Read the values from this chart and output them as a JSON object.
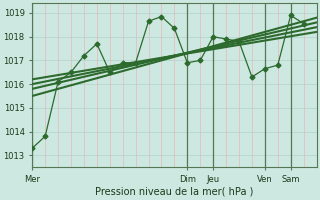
{
  "background_color": "#cce8e0",
  "grid_color_h": "#b8d8d0",
  "grid_color_v": "#e8b8b8",
  "line_color": "#2d6a2d",
  "xlabel": "Pression niveau de la mer( hPa )",
  "ylim_min": 1012.5,
  "ylim_max": 1019.4,
  "yticks": [
    1013,
    1014,
    1015,
    1016,
    1017,
    1018,
    1019
  ],
  "xlim_min": 0,
  "xlim_max": 132,
  "xtick_positions": [
    0,
    72,
    84,
    108,
    120
  ],
  "xtick_labels": [
    "Mer",
    "Dim",
    "Jeu",
    "Ven",
    "Sam"
  ],
  "vline_positions": [
    0,
    72,
    84,
    108,
    120
  ],
  "series1_x": [
    0,
    6,
    12,
    18,
    24,
    30,
    36,
    42,
    48,
    54,
    60,
    66,
    72,
    78,
    84,
    90,
    96,
    102,
    108,
    114,
    120,
    126
  ],
  "series1_y": [
    1013.3,
    1013.8,
    1016.1,
    1016.5,
    1017.2,
    1017.7,
    1016.5,
    1016.9,
    1016.9,
    1018.65,
    1018.85,
    1018.35,
    1016.9,
    1017.0,
    1018.0,
    1017.9,
    1017.8,
    1016.3,
    1016.65,
    1016.8,
    1018.9,
    1018.55
  ],
  "smooth_lines": [
    {
      "x0": 0,
      "x1": 132,
      "y0": 1016.0,
      "y1": 1018.4
    },
    {
      "x0": 0,
      "x1": 132,
      "y0": 1015.8,
      "y1": 1018.6
    },
    {
      "x0": 0,
      "x1": 132,
      "y0": 1016.2,
      "y1": 1018.2
    },
    {
      "x0": 0,
      "x1": 132,
      "y0": 1015.5,
      "y1": 1018.8
    }
  ]
}
